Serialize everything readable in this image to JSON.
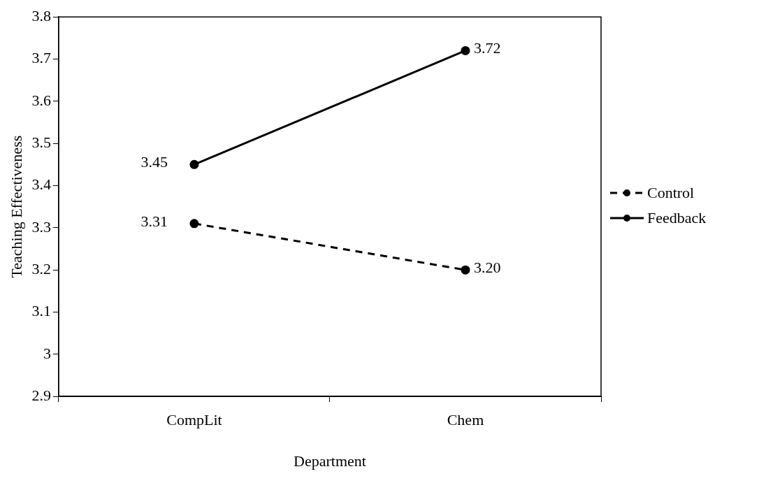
{
  "chart_data": {
    "type": "line",
    "xlabel": "Department",
    "ylabel": "Teaching Effectiveness",
    "categories": [
      "CompLit",
      "Chem"
    ],
    "series": [
      {
        "name": "Control",
        "color": "#000000",
        "values": [
          3.31,
          3.2
        ],
        "value_labels": [
          "3.31",
          "3.20"
        ],
        "line_style": "dashed"
      },
      {
        "name": "Feedback",
        "color": "#000000",
        "values": [
          3.45,
          3.72
        ],
        "value_labels": [
          "3.45",
          "3.72"
        ],
        "line_style": "solid"
      }
    ],
    "ylim": [
      2.9,
      3.8
    ],
    "yticks": [
      2.9,
      3,
      3.1,
      3.2,
      3.3,
      3.4,
      3.5,
      3.6,
      3.7,
      3.8
    ],
    "grid": false,
    "legend": "right",
    "marker": "circle"
  }
}
